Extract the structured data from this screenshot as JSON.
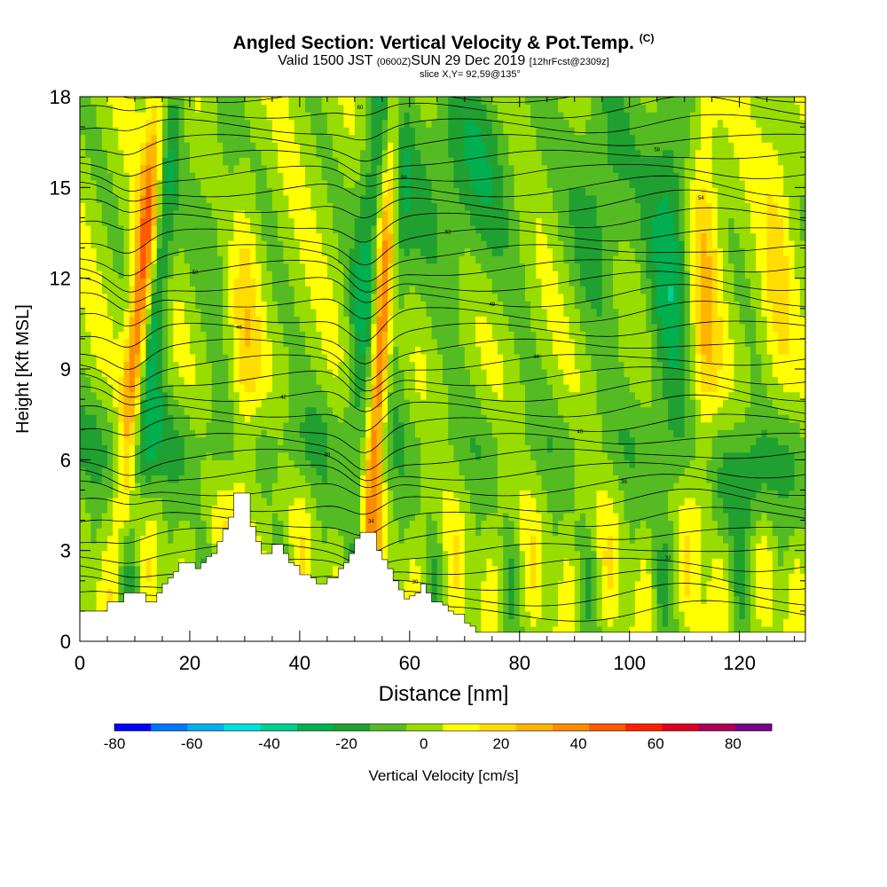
{
  "header": {
    "title": "Angled Section: Vertical Velocity & Pot.Temp.",
    "title_tag": "(C)",
    "valid_prefix": "Valid 1500 JST",
    "valid_utc": "(0600Z)",
    "valid_date": "SUN 29 Dec 2019",
    "forecast": "[12hrFcst@2309z]",
    "slice": "slice X,Y= 92,59@135°"
  },
  "chart_data": {
    "type": "heatmap",
    "title": "Angled Section: Vertical Velocity & Pot.Temp.",
    "xlabel": "Distance [nm]",
    "ylabel": "Height [Kft MSL]",
    "xlim": [
      0,
      132
    ],
    "ylim": [
      0,
      18
    ],
    "x_ticks": [
      "0",
      "20",
      "40",
      "60",
      "80",
      "100",
      "120"
    ],
    "x_tick_values": [
      0,
      20,
      40,
      60,
      80,
      100,
      120
    ],
    "y_ticks": [
      "0",
      "3",
      "6",
      "9",
      "12",
      "15",
      "18"
    ],
    "y_tick_values": [
      0,
      3,
      6,
      9,
      12,
      15,
      18
    ],
    "colorbar": {
      "label": "Vertical Velocity [cm/s]",
      "range": [
        -80,
        90
      ],
      "step": 10,
      "tick_labels": [
        "-80",
        "-60",
        "-40",
        "-20",
        "0",
        "20",
        "40",
        "60",
        "80"
      ],
      "tick_values": [
        -80,
        -60,
        -40,
        -20,
        0,
        20,
        40,
        60,
        80
      ],
      "colors": [
        "#0000ff",
        "#0077ff",
        "#00b0f0",
        "#00e0e0",
        "#00d090",
        "#00b050",
        "#20a030",
        "#55bb22",
        "#99dd00",
        "#ffff00",
        "#ffdd00",
        "#ffb400",
        "#ff8c00",
        "#ff5a00",
        "#ff2000",
        "#dd0022",
        "#aa0055",
        "#770088"
      ]
    },
    "terrain": [
      [
        0,
        1
      ],
      [
        1,
        1
      ],
      [
        2,
        1
      ],
      [
        3,
        1
      ],
      [
        4,
        1
      ],
      [
        5,
        1.3
      ],
      [
        6,
        1.3
      ],
      [
        7,
        1.3
      ],
      [
        8,
        1.6
      ],
      [
        9,
        1.6
      ],
      [
        10,
        1.6
      ],
      [
        11,
        1.6
      ],
      [
        12,
        1.3
      ],
      [
        13,
        1.3
      ],
      [
        14,
        1.6
      ],
      [
        15,
        1.9
      ],
      [
        16,
        2.1
      ],
      [
        17,
        2.3
      ],
      [
        18,
        2.6
      ],
      [
        19,
        2.6
      ],
      [
        20,
        2.6
      ],
      [
        21,
        2.4
      ],
      [
        22,
        2.6
      ],
      [
        23,
        2.8
      ],
      [
        24,
        2.9
      ],
      [
        25,
        3.3
      ],
      [
        26,
        3.7
      ],
      [
        27,
        4.1
      ],
      [
        28,
        4.9
      ],
      [
        29,
        4.9
      ],
      [
        30,
        4.9
      ],
      [
        31,
        3.8
      ],
      [
        32,
        3.3
      ],
      [
        33,
        2.9
      ],
      [
        34,
        2.9
      ],
      [
        35,
        3.2
      ],
      [
        36,
        3.2
      ],
      [
        37,
        2.9
      ],
      [
        38,
        2.6
      ],
      [
        39,
        2.5
      ],
      [
        40,
        2.2
      ],
      [
        41,
        2.2
      ],
      [
        42,
        2.1
      ],
      [
        43,
        1.9
      ],
      [
        44,
        1.9
      ],
      [
        45,
        2.1
      ],
      [
        46,
        2.1
      ],
      [
        47,
        2.4
      ],
      [
        48,
        2.6
      ],
      [
        49,
        2.9
      ],
      [
        50,
        3.4
      ],
      [
        51,
        3.6
      ],
      [
        52,
        3.6
      ],
      [
        53,
        3.6
      ],
      [
        54,
        3.0
      ],
      [
        55,
        2.7
      ],
      [
        56,
        2.4
      ],
      [
        57,
        2.0
      ],
      [
        58,
        1.7
      ],
      [
        59,
        1.4
      ],
      [
        60,
        1.5
      ],
      [
        61,
        1.6
      ],
      [
        62,
        1.9
      ],
      [
        63,
        1.6
      ],
      [
        64,
        1.3
      ],
      [
        65,
        1.3
      ],
      [
        66,
        1.2
      ],
      [
        67,
        1.0
      ],
      [
        68,
        0.9
      ],
      [
        69,
        0.9
      ],
      [
        70,
        0.6
      ],
      [
        71,
        0.5
      ],
      [
        72,
        0.3
      ],
      [
        132,
        0.3
      ]
    ],
    "contour_labels": [
      "28",
      "30",
      "32",
      "34",
      "36",
      "38",
      "40",
      "42",
      "44",
      "46",
      "48",
      "50",
      "52",
      "54",
      "56",
      "58",
      "60",
      "62",
      "64",
      "66",
      "68",
      "70"
    ]
  }
}
